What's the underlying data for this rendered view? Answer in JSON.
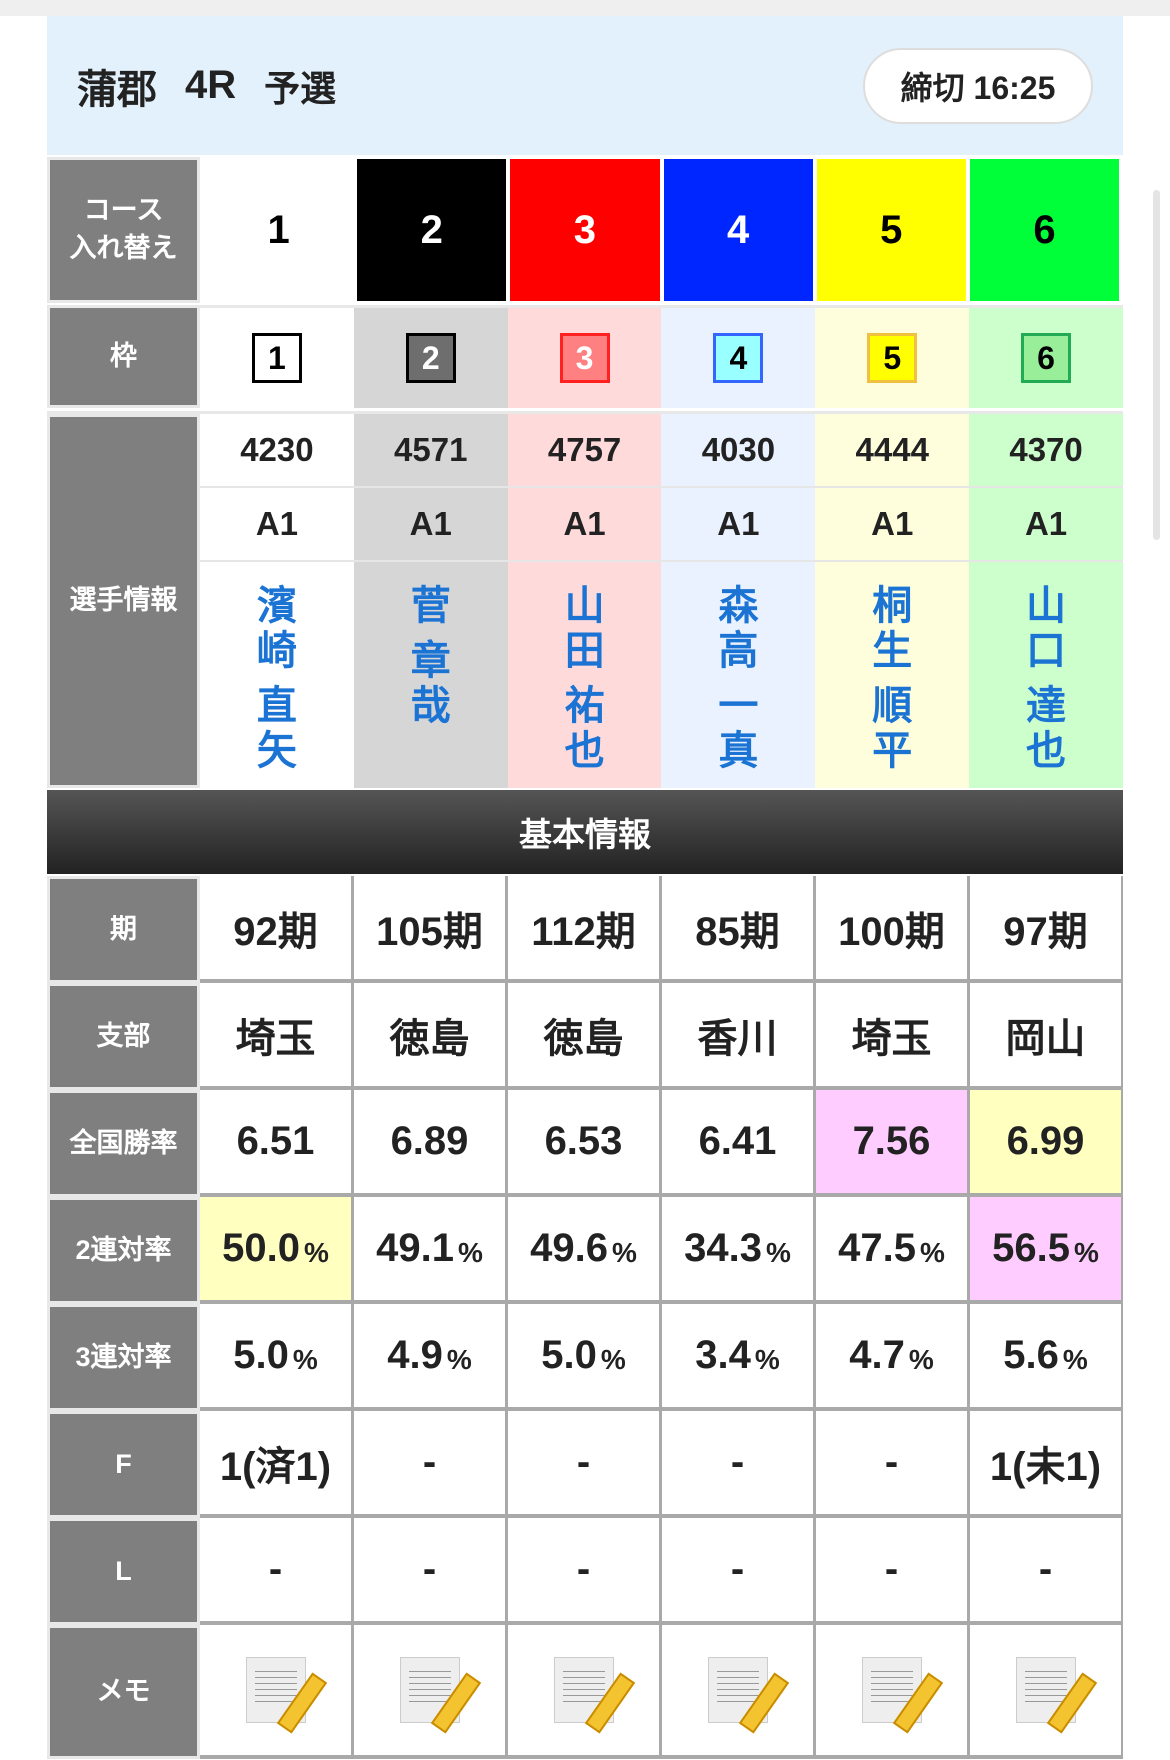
{
  "header": {
    "venue": "蒲郡",
    "race": "4R",
    "grade": "予選",
    "deadline": "締切 16:25"
  },
  "course_label": "コース\n入れ替え",
  "courses": [
    {
      "num": "1",
      "bg": "#ffffff",
      "fg": "#000000"
    },
    {
      "num": "2",
      "bg": "#000000",
      "fg": "#ffffff"
    },
    {
      "num": "3",
      "bg": "#ff0000",
      "fg": "#ffffff"
    },
    {
      "num": "4",
      "bg": "#0026ff",
      "fg": "#ffffff"
    },
    {
      "num": "5",
      "bg": "#ffff00",
      "fg": "#000000"
    },
    {
      "num": "6",
      "bg": "#00ff38",
      "fg": "#000000"
    }
  ],
  "waku_label": "枠",
  "waku": [
    {
      "num": "1",
      "cell": "#ffffff",
      "box": "#ffffff",
      "border": "#000000",
      "fg": "#000000"
    },
    {
      "num": "2",
      "cell": "#d6d6d6",
      "box": "#6e6e6e",
      "border": "#000000",
      "fg": "#ffffff"
    },
    {
      "num": "3",
      "cell": "#ffdada",
      "box": "#ff8080",
      "border": "#ff2020",
      "fg": "#ffffff"
    },
    {
      "num": "4",
      "cell": "#eaf2ff",
      "box": "#99ffff",
      "border": "#3366ff",
      "fg": "#000000"
    },
    {
      "num": "5",
      "cell": "#fefedc",
      "box": "#ffff00",
      "border": "#f0c040",
      "fg": "#000000"
    },
    {
      "num": "6",
      "cell": "#ccffcc",
      "box": "#99ee99",
      "border": "#22aa55",
      "fg": "#000000"
    }
  ],
  "player_label": "選手情報",
  "players": [
    {
      "reg": "4230",
      "class": "A1",
      "surname": [
        "濱",
        "崎"
      ],
      "given": [
        "直",
        "矢"
      ]
    },
    {
      "reg": "4571",
      "class": "A1",
      "surname": [
        "菅"
      ],
      "given": [
        "章",
        "哉"
      ]
    },
    {
      "reg": "4757",
      "class": "A1",
      "surname": [
        "山",
        "田"
      ],
      "given": [
        "祐",
        "也"
      ]
    },
    {
      "reg": "4030",
      "class": "A1",
      "surname": [
        "森",
        "高"
      ],
      "given": [
        "一",
        "真"
      ]
    },
    {
      "reg": "4444",
      "class": "A1",
      "surname": [
        "桐",
        "生"
      ],
      "given": [
        "順",
        "平"
      ]
    },
    {
      "reg": "4370",
      "class": "A1",
      "surname": [
        "山",
        "口"
      ],
      "given": [
        "達",
        "也"
      ]
    }
  ],
  "section_title": "基本情報",
  "rows": [
    {
      "label": "期",
      "values": [
        "92期",
        "105期",
        "112期",
        "85期",
        "100期",
        "97期"
      ]
    },
    {
      "label": "支部",
      "values": [
        "埼玉",
        "徳島",
        "徳島",
        "香川",
        "埼玉",
        "岡山"
      ]
    },
    {
      "label": "全国勝率",
      "values": [
        "6.51",
        "6.89",
        "6.53",
        "6.41",
        "7.56",
        "6.99"
      ],
      "highlight": {
        "4": "#ffccff",
        "5": "#ffffc0"
      }
    },
    {
      "label": "2連対率",
      "values": [
        "50.0",
        "49.1",
        "49.6",
        "34.3",
        "47.5",
        "56.5"
      ],
      "unit": "%",
      "highlight": {
        "0": "#ffffc0",
        "5": "#ffccff"
      }
    },
    {
      "label": "3連対率",
      "values": [
        "5.0",
        "4.9",
        "5.0",
        "3.4",
        "4.7",
        "5.6"
      ],
      "unit": "%"
    },
    {
      "label": "F",
      "values": [
        "1(済1)",
        "-",
        "-",
        "-",
        "-",
        "1(未1)"
      ]
    },
    {
      "label": "L",
      "values": [
        "-",
        "-",
        "-",
        "-",
        "-",
        "-"
      ]
    },
    {
      "label": "メモ",
      "icon": "memo-pencil-icon"
    }
  ]
}
